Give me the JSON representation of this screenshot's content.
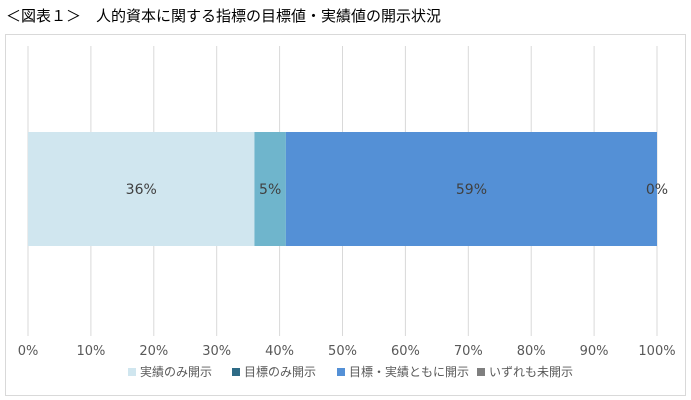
{
  "title": "＜図表１＞　人的資本に関する指標の目標値・実績値の開示状況",
  "chart_data": {
    "type": "bar",
    "orientation": "horizontal",
    "stacked": true,
    "categories": [
      ""
    ],
    "series": [
      {
        "name": "実績のみ開示",
        "values": [
          36
        ],
        "color": "#d0e6ef",
        "label": "36%"
      },
      {
        "name": "目標のみ開示",
        "values": [
          5
        ],
        "color": "#6fb5cc",
        "label": "5%"
      },
      {
        "name": "目標・実績ともに開示",
        "values": [
          59
        ],
        "color": "#5490d6",
        "label": "59%"
      },
      {
        "name": "いずれも未開示",
        "values": [
          0
        ],
        "color": "#7f7f7f",
        "label": "0%"
      }
    ],
    "legend_markers": [
      "#d0e6ef",
      "#2e6b86",
      "#5490d6",
      "#7f7f7f"
    ],
    "xlim": [
      0,
      100
    ],
    "x_ticks": [
      "0%",
      "10%",
      "20%",
      "30%",
      "40%",
      "50%",
      "60%",
      "70%",
      "80%",
      "90%",
      "100%"
    ],
    "grid": true,
    "legend_position": "bottom"
  }
}
